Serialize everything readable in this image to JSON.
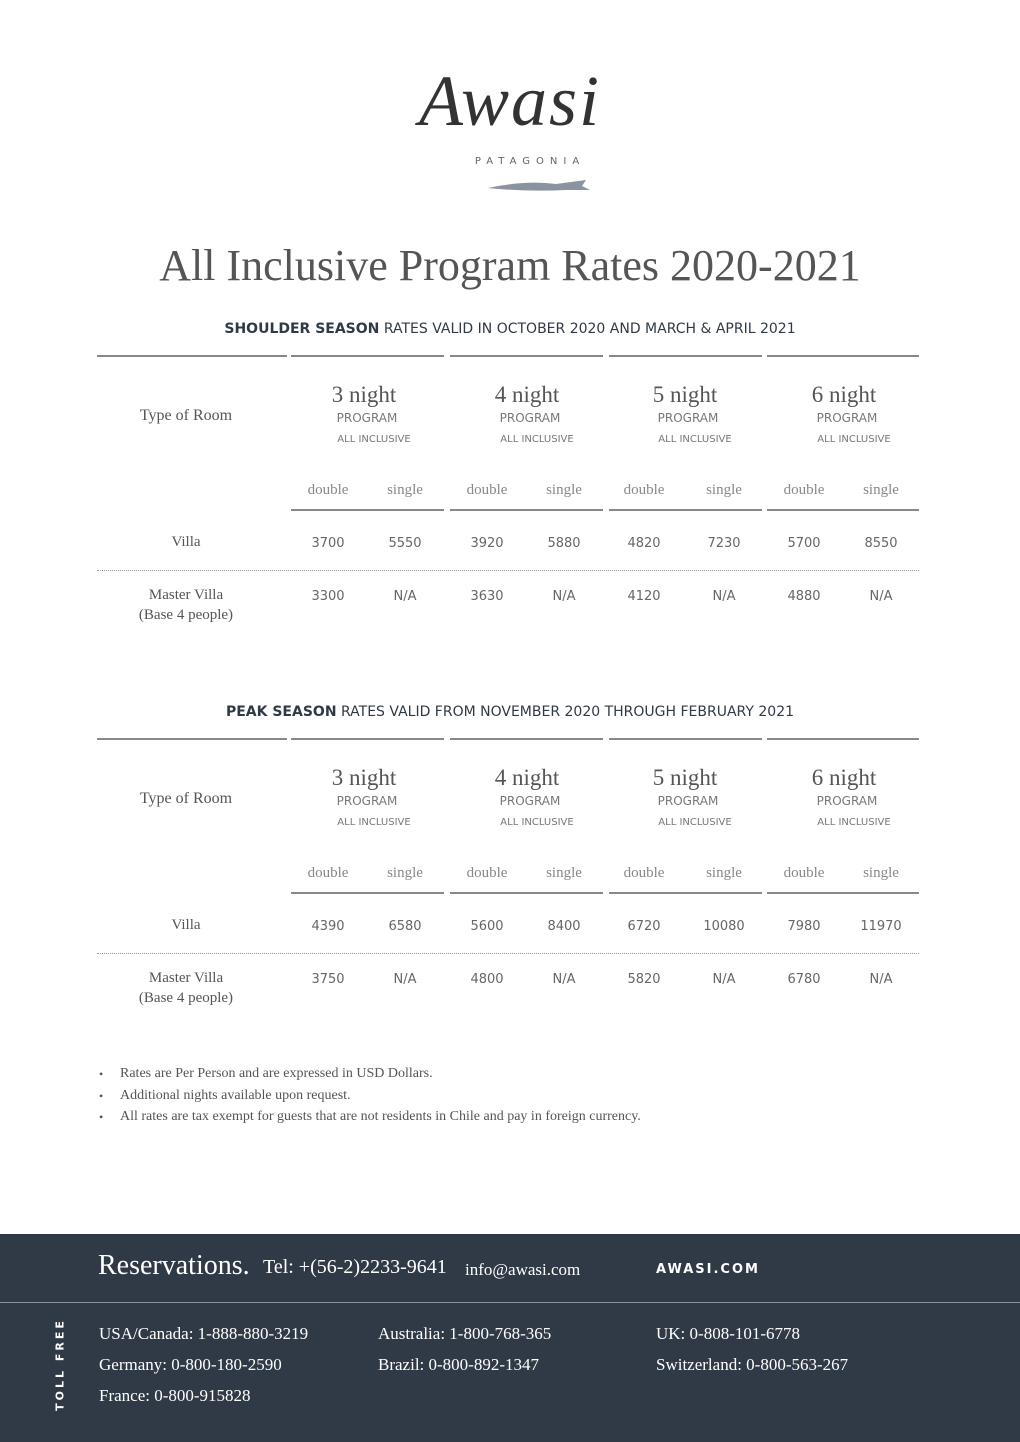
{
  "logo": {
    "name": "Awasi",
    "sub": "PATAGONIA"
  },
  "title": "All Inclusive Program Rates 2020-2021",
  "sections": [
    {
      "season": "SHOULDER SEASON",
      "validity": "RATES VALID IN OCTOBER 2020 AND MARCH & APRIL 2021",
      "room_header": "Type of Room",
      "programs": [
        {
          "nights": "3 night",
          "program": "PROGRAM",
          "inclusive": "ALL INCLUSIVE",
          "columns": [
            "double",
            "single"
          ]
        },
        {
          "nights": "4 night",
          "program": "PROGRAM",
          "inclusive": "ALL INCLUSIVE",
          "columns": [
            "double",
            "single"
          ]
        },
        {
          "nights": "5 night",
          "program": "PROGRAM",
          "inclusive": "ALL INCLUSIVE",
          "columns": [
            "double",
            "single"
          ]
        },
        {
          "nights": "6 night",
          "program": "PROGRAM",
          "inclusive": "ALL INCLUSIVE",
          "columns": [
            "double",
            "single"
          ]
        }
      ],
      "rows": [
        {
          "room": "Villa",
          "rates": [
            3700,
            5550,
            3920,
            5880,
            4820,
            7230,
            5700,
            8550
          ]
        },
        {
          "room": "Master Villa",
          "note": "(Base 4 people)",
          "rates": [
            3300,
            "N/A",
            3630,
            "N/A",
            4120,
            "N/A",
            4880,
            "N/A"
          ]
        }
      ]
    },
    {
      "season": "PEAK SEASON",
      "validity": "RATES VALID FROM NOVEMBER 2020 THROUGH FEBRUARY 2021",
      "room_header": "Type of Room",
      "programs": [
        {
          "nights": "3 night",
          "program": "PROGRAM",
          "inclusive": "ALL INCLUSIVE",
          "columns": [
            "double",
            "single"
          ]
        },
        {
          "nights": "4 night",
          "program": "PROGRAM",
          "inclusive": "ALL INCLUSIVE",
          "columns": [
            "double",
            "single"
          ]
        },
        {
          "nights": "5 night",
          "program": "PROGRAM",
          "inclusive": "ALL INCLUSIVE",
          "columns": [
            "double",
            "single"
          ]
        },
        {
          "nights": "6 night",
          "program": "PROGRAM",
          "inclusive": "ALL INCLUSIVE",
          "columns": [
            "double",
            "single"
          ]
        }
      ],
      "rows": [
        {
          "room": "Villa",
          "rates": [
            4390,
            6580,
            5600,
            8400,
            6720,
            10080,
            7980,
            11970
          ]
        },
        {
          "room": "Master Villa",
          "note": "(Base 4 people)",
          "rates": [
            3750,
            "N/A",
            4800,
            "N/A",
            5820,
            "N/A",
            6780,
            "N/A"
          ]
        }
      ]
    }
  ],
  "notes": [
    "Rates are Per Person and are expressed in USD Dollars.",
    "Additional nights available upon request.",
    "All rates are tax exempt for guests that are not residents in Chile and pay in foreign currency."
  ],
  "footer": {
    "reservations": "Reservations.",
    "tel": "Tel: +(56-2)2233-9641",
    "email": "info@awasi.com",
    "site": "AWASI.COM",
    "toll_free": "TOLL FREE",
    "numbers": [
      "USA/Canada: 1-888-880-3219",
      "Australia: 1-800-768-365",
      "UK: 0-808-101-6778",
      "Germany: 0-800-180-2590",
      "Brazil: 0-800-892-1347",
      "Switzerland: 0-800-563-267",
      "France: 0-800-915828"
    ]
  }
}
